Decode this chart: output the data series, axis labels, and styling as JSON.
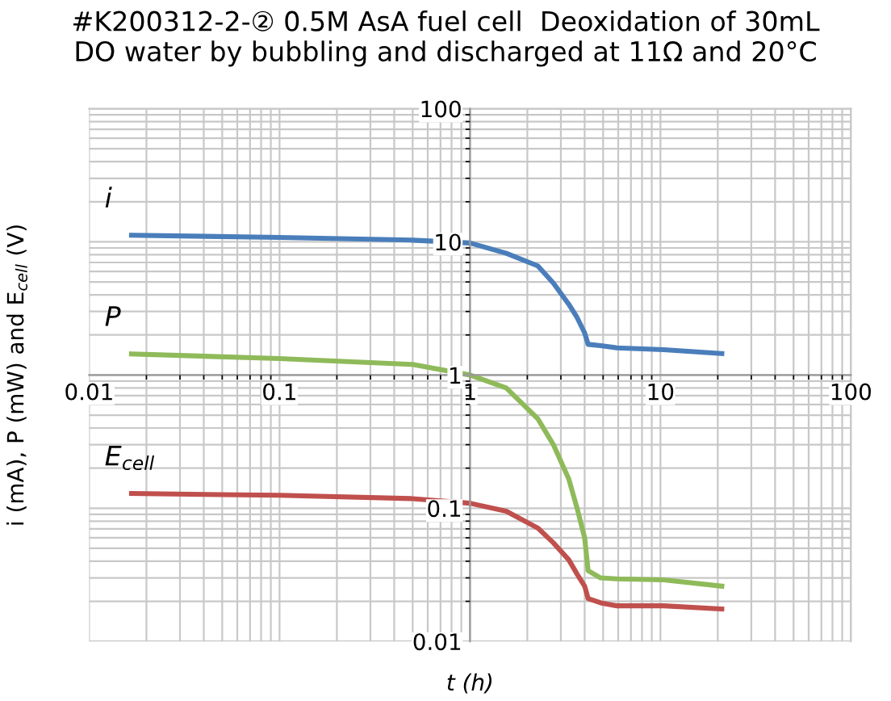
{
  "chart_data": {
    "type": "line",
    "title": "#K200312-2-② 0.5M AsA fuel cell  Deoxidation of 30mL\nDO water by bubbling and discharged at 11Ω and 20°C",
    "xlabel": "t (h)",
    "ylabel": "i (mA), P (mW) and E$_{cell}$ (V)",
    "log": "xy",
    "xlim": [
      0.01,
      100
    ],
    "ylim": [
      0.01,
      100
    ],
    "xticks": [
      0.01,
      0.1,
      1,
      10,
      100
    ],
    "yticks": [
      0.01,
      0.1,
      1,
      10,
      100
    ],
    "grid": true,
    "legend": false,
    "marker": "none",
    "line_style": "solid",
    "x": [
      0.0167,
      0.1,
      0.5,
      1,
      1.55,
      2.27,
      2.74,
      3.3,
      3.65,
      4.0,
      4.17,
      4.85,
      5.9,
      10.4,
      21
    ],
    "series": [
      {
        "name": "i",
        "color": "#4a7ebb",
        "values": [
          11.2,
          10.8,
          10.3,
          9.8,
          8.2,
          6.6,
          4.9,
          3.4,
          2.7,
          2.07,
          1.7,
          1.66,
          1.6,
          1.55,
          1.45
        ]
      },
      {
        "name": "P",
        "color": "#8fba5a",
        "values": [
          1.44,
          1.33,
          1.2,
          1.0,
          0.8,
          0.47,
          0.3,
          0.166,
          0.1,
          0.06,
          0.034,
          0.03,
          0.0295,
          0.029,
          0.026
        ]
      },
      {
        "name": "E$_{cell}$",
        "color": "#c0504d",
        "values": [
          0.129,
          0.125,
          0.118,
          0.109,
          0.095,
          0.071,
          0.055,
          0.041,
          0.032,
          0.026,
          0.021,
          0.0195,
          0.0185,
          0.0185,
          0.0175
        ]
      }
    ]
  }
}
